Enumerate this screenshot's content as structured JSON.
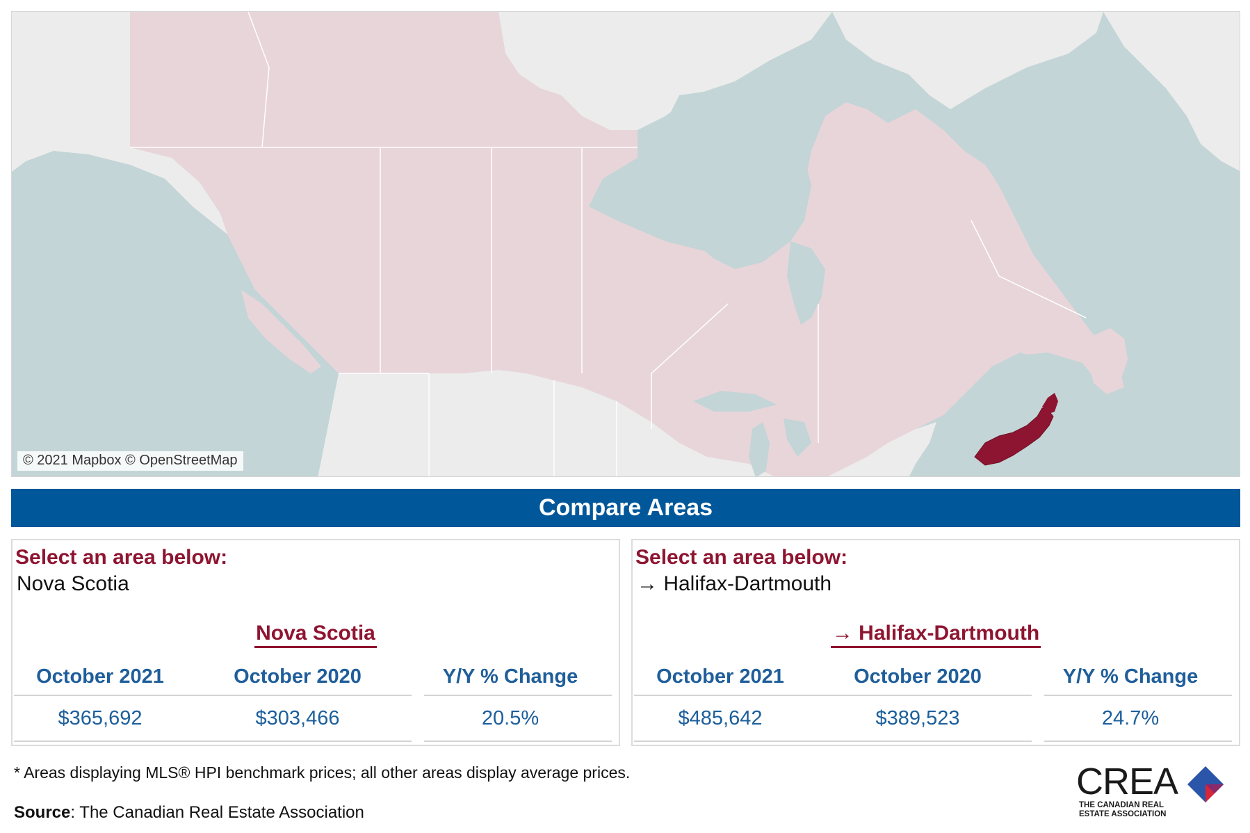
{
  "map": {
    "attribution": "© 2021 Mapbox © OpenStreetMap",
    "highlighted_region": "Nova Scotia",
    "colors": {
      "water": "#c3d5d6",
      "canada_land": "#e8d5da",
      "other_land": "#ececec",
      "highlight": "#8e1531",
      "borders": "#ffffff"
    }
  },
  "banner": {
    "title": "Compare Areas",
    "color": "#00579a"
  },
  "panels": [
    {
      "select_label": "Select an area below:",
      "selected_value": "Nova Scotia",
      "area_title": "Nova Scotia",
      "columns": [
        {
          "header": "October 2021",
          "value": "$365,692"
        },
        {
          "header": "October 2020",
          "value": "$303,466"
        },
        {
          "header": "Y/Y % Change",
          "value": "20.5%"
        }
      ]
    },
    {
      "select_label": "Select an area below:",
      "selected_value": "→ Halifax-Dartmouth",
      "area_title": "→ Halifax-Dartmouth",
      "columns": [
        {
          "header": "October 2021",
          "value": "$485,642"
        },
        {
          "header": "October 2020",
          "value": "$389,523"
        },
        {
          "header": "Y/Y % Change",
          "value": "24.7%"
        }
      ]
    }
  ],
  "colors": {
    "accent_red": "#8e1531",
    "heading_blue": "#1f5e9a",
    "value_blue": "#1c5f9c"
  },
  "footnote": "* Areas displaying MLS® HPI benchmark prices; all other areas display average prices.",
  "source": {
    "label": "Source",
    "text": ": The Canadian Real Estate Association"
  },
  "logo": {
    "wordmark": "CREA",
    "line1": "THE CANADIAN REAL",
    "line2": "ESTATE ASSOCIATION"
  }
}
